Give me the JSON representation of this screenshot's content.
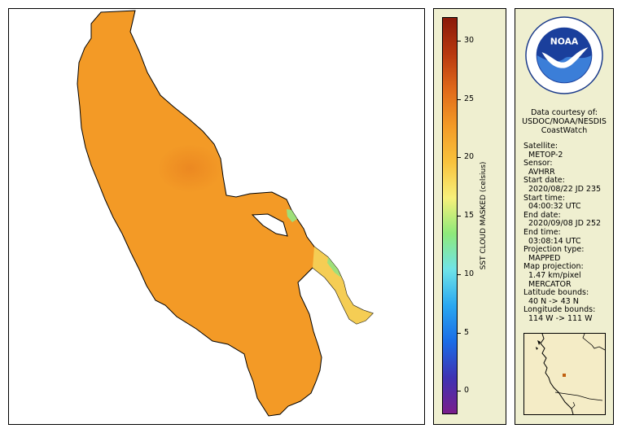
{
  "map": {
    "land_color": "#f39a26",
    "outline_color": "#000000"
  },
  "colorbar": {
    "title": "SST CLOUD MASKED (celsius)",
    "ticks": [
      "30",
      "25",
      "20",
      "15",
      "10",
      "5",
      "0"
    ],
    "range": [
      -2,
      32
    ],
    "colors": [
      "#7a1d8c",
      "#3e33b3",
      "#1a6de6",
      "#29a8f0",
      "#6fe3e8",
      "#8ee97a",
      "#f7f07a",
      "#f8c23c",
      "#f39a26",
      "#e06a1a",
      "#b8380f",
      "#8a1a0a"
    ]
  },
  "info": {
    "logo_text": "NOAA",
    "logo_ring_text": "NATIONAL OCEANIC AND ATMOSPHERIC ADMINISTRATION · U.S. DEPARTMENT OF COMMERCE",
    "credit_line1": "Data courtesy of:",
    "credit_line2": "USDOC/NOAA/NESDIS",
    "credit_line3": "CoastWatch",
    "satellite_label": "Satellite:",
    "satellite_value": "METOP-2",
    "sensor_label": "Sensor:",
    "sensor_value": "AVHRR",
    "start_date_label": "Start date:",
    "start_date_value": "2020/08/22 JD 235",
    "start_time_label": "Start time:",
    "start_time_value": "04:00:32 UTC",
    "end_date_label": "End date:",
    "end_date_value": "2020/09/08 JD 252",
    "end_time_label": "End time:",
    "end_time_value": "03:08:14 UTC",
    "projection_type_label": "Projection type:",
    "projection_type_value": "MAPPED",
    "map_projection_label": "Map projection:",
    "map_projection_value1": "1.47 km/pixel",
    "map_projection_value2": "MERCATOR",
    "latitude_label": "Latitude bounds:",
    "latitude_value": "40 N -> 43 N",
    "longitude_label": "Longitude bounds:",
    "longitude_value": "114 W -> 111 W"
  }
}
